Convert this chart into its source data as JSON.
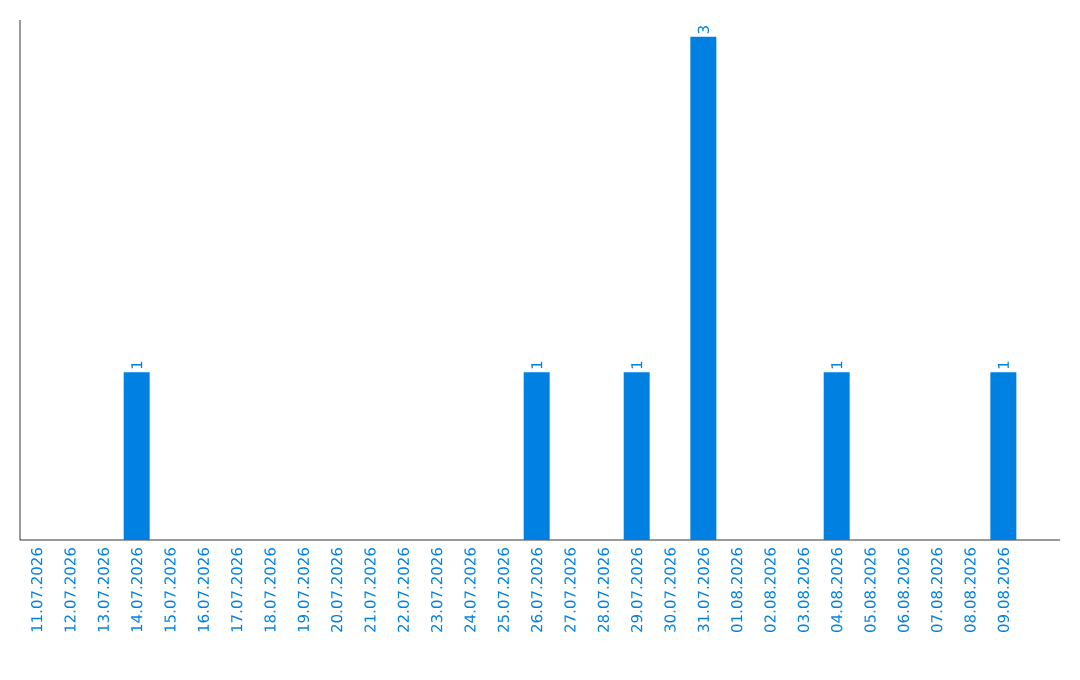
{
  "chart_data": {
    "type": "bar",
    "categories": [
      "11.07.2026",
      "12.07.2026",
      "13.07.2026",
      "14.07.2026",
      "15.07.2026",
      "16.07.2026",
      "17.07.2026",
      "18.07.2026",
      "19.07.2026",
      "20.07.2026",
      "21.07.2026",
      "22.07.2026",
      "23.07.2026",
      "24.07.2026",
      "25.07.2026",
      "26.07.2026",
      "27.07.2026",
      "28.07.2026",
      "29.07.2026",
      "30.07.2026",
      "31.07.2026",
      "01.08.2026",
      "02.08.2026",
      "03.08.2026",
      "04.08.2026",
      "05.08.2026",
      "06.08.2026",
      "07.08.2026",
      "08.08.2026",
      "09.08.2026"
    ],
    "values": [
      0,
      0,
      0,
      1,
      0,
      0,
      0,
      0,
      0,
      0,
      0,
      0,
      0,
      0,
      0,
      1,
      0,
      0,
      1,
      0,
      3,
      0,
      0,
      0,
      1,
      0,
      0,
      0,
      0,
      1
    ],
    "value_labels": [
      null,
      null,
      null,
      "1",
      null,
      null,
      null,
      null,
      null,
      null,
      null,
      null,
      null,
      null,
      null,
      "1",
      null,
      null,
      "1",
      null,
      "3",
      null,
      null,
      null,
      "1",
      null,
      null,
      null,
      null,
      "1"
    ],
    "color": "#0080e0",
    "ylim": [
      0,
      3.1
    ],
    "tick_labels": "x"
  }
}
